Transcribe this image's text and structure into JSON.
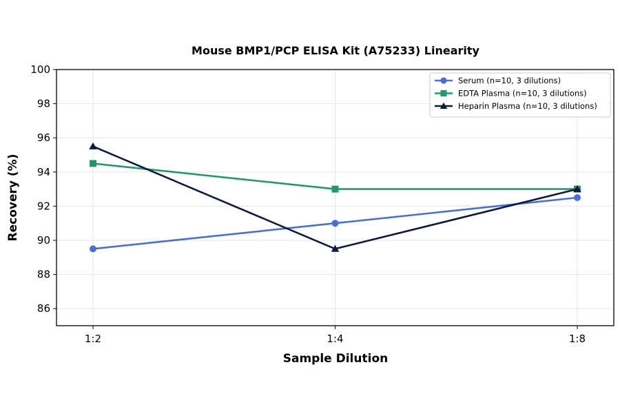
{
  "chart_data": {
    "type": "line",
    "title": "Mouse BMP1/PCP ELISA Kit (A75233) Linearity",
    "xlabel": "Sample Dilution",
    "ylabel": "Recovery (%)",
    "categories": [
      "1:2",
      "1:4",
      "1:8"
    ],
    "ylim": [
      85,
      100
    ],
    "yticks": [
      86,
      88,
      90,
      92,
      94,
      96,
      98,
      100
    ],
    "grid": true,
    "legend_position": "top-right",
    "series": [
      {
        "name": "Serum (n=10, 3 dilutions)",
        "values": [
          89.5,
          91.0,
          92.5
        ],
        "color": "#4a6fd4",
        "marker": "circle"
      },
      {
        "name": "EDTA Plasma (n=10, 3 dilutions)",
        "values": [
          94.5,
          93.0,
          93.0
        ],
        "color": "#23996b",
        "marker": "square"
      },
      {
        "name": "Heparin Plasma (n=10, 3 dilutions)",
        "values": [
          95.5,
          89.5,
          93.0
        ],
        "color": "#0d1a3f",
        "marker": "triangle"
      }
    ]
  }
}
